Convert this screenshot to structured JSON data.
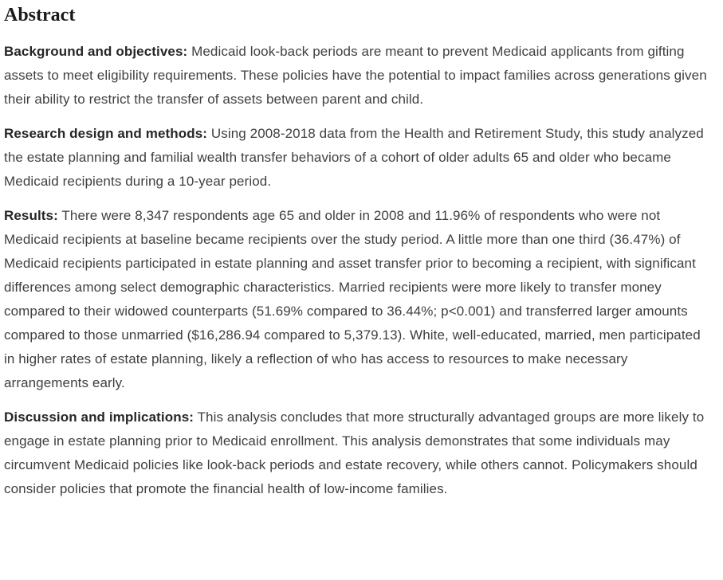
{
  "page": {
    "title": "Abstract"
  },
  "abstract": {
    "sections": [
      {
        "label": "Background and objectives:",
        "text": "Medicaid look-back periods are meant to prevent Medicaid applicants from gifting assets to meet eligibility requirements. These policies have the potential to impact families across generations given their ability to restrict the transfer of assets between parent and child."
      },
      {
        "label": "Research design and methods:",
        "text": "Using 2008-2018 data from the Health and Retirement Study, this study analyzed the estate planning and familial wealth transfer behaviors of a cohort of older adults 65 and older who became Medicaid recipients during a 10-year period."
      },
      {
        "label": "Results:",
        "text": "There were 8,347 respondents age 65 and older in 2008 and 11.96% of respondents who were not Medicaid recipients at baseline became recipients over the study period. A little more than one third (36.47%) of Medicaid recipients participated in estate planning and asset transfer prior to becoming a recipient, with significant differences among select demographic characteristics. Married recipients were more likely to transfer money compared to their widowed counterparts (51.69% compared to 36.44%; p<0.001) and transferred larger amounts compared to those unmarried ($16,286.94 compared to 5,379.13). White, well-educated, married, men participated in higher rates of estate planning, likely a reflection of who has access to resources to make necessary arrangements early."
      },
      {
        "label": "Discussion and implications:",
        "text": "This analysis concludes that more structurally advantaged groups are more likely to engage in estate planning prior to Medicaid enrollment. This analysis demonstrates that some individuals may circumvent Medicaid policies like look-back periods and estate recovery, while others cannot. Policymakers should consider policies that promote the financial health of low-income families."
      }
    ]
  }
}
